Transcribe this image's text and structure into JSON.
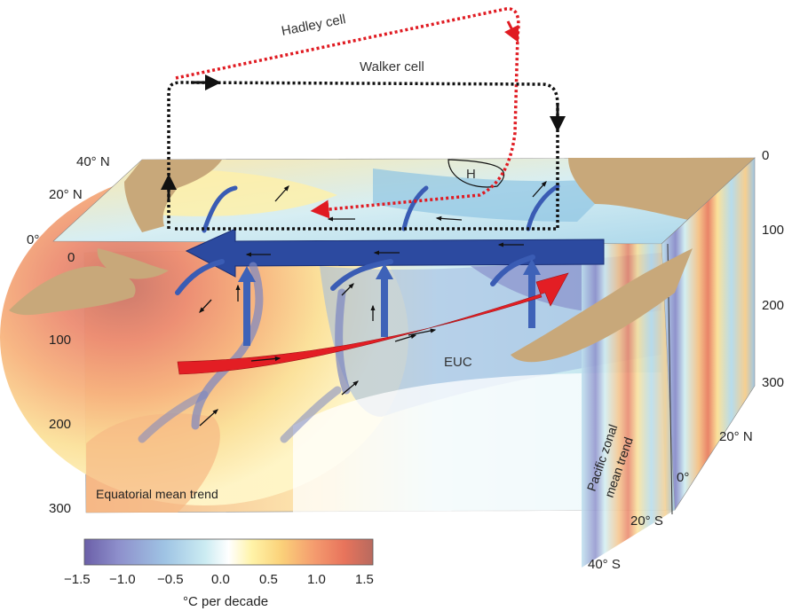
{
  "labels": {
    "hadley_cell": "Hadley cell",
    "walker_cell": "Walker cell",
    "high_pressure": "H",
    "euc": "EUC",
    "equatorial_panel": "Equatorial mean trend",
    "pacific_panel_line1": "Pacific zonal",
    "pacific_panel_line2": "mean trend"
  },
  "top_face_latitudes": [
    "40° N",
    "20° N",
    "0°"
  ],
  "top_face_zero": "0",
  "front_depth_ticks": [
    "100",
    "200",
    "300"
  ],
  "right_depth_ticks": [
    "0",
    "100",
    "200",
    "300"
  ],
  "side_latitudes": [
    "20° N",
    "0°",
    "20° S",
    "40° S"
  ],
  "colorbar": {
    "ticks": [
      "−1.5",
      "−1.0",
      "−0.5",
      "0.0",
      "0.5",
      "1.0",
      "1.5"
    ],
    "unit": "°C per decade",
    "range": [
      -1.5,
      1.5
    ],
    "colors": [
      "#6b5fa8",
      "#8e90cc",
      "#9fc4e4",
      "#ccecf2",
      "#ffffff",
      "#fff3a8",
      "#fbd27a",
      "#f49a6e",
      "#e8745c",
      "#b86a5e"
    ]
  },
  "colors": {
    "hadley": "#e01b22",
    "walker": "#111111",
    "trade_wind": "#2c4aa0",
    "euc": "#e31e24",
    "land": "#c8a87a"
  }
}
